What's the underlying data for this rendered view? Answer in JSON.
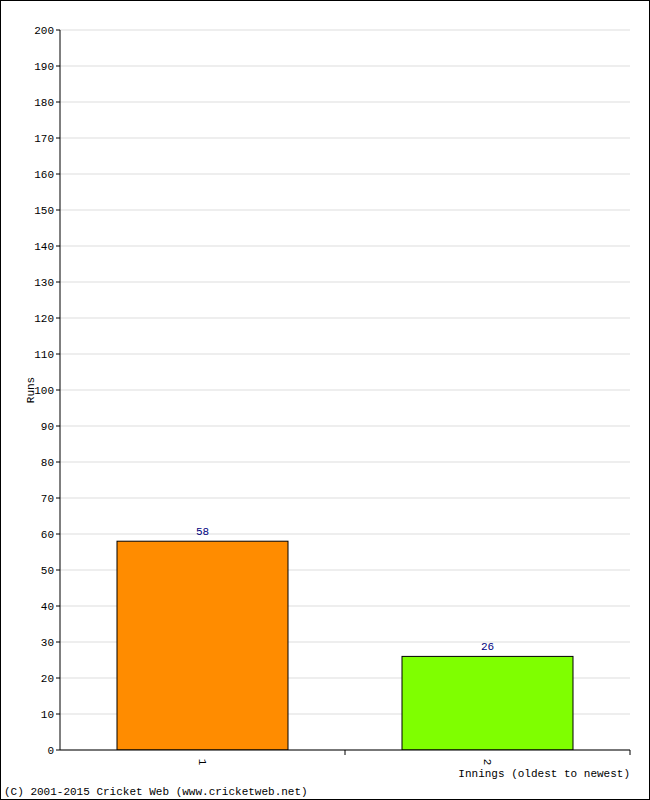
{
  "chart_data": {
    "type": "bar",
    "categories": [
      "1",
      "2"
    ],
    "values": [
      58,
      26
    ],
    "colors": [
      "#ff8c00",
      "#7fff00"
    ],
    "ylim": [
      0,
      200
    ],
    "yticks": [
      0,
      10,
      20,
      30,
      40,
      50,
      60,
      70,
      80,
      90,
      100,
      110,
      120,
      130,
      140,
      150,
      160,
      170,
      180,
      190,
      200
    ],
    "x_label": "Innings (oldest to newest)",
    "y_label": "Runs",
    "annotations": [
      "(C) 2001-2015 Cricket Web (www.cricketweb.net)"
    ],
    "grid": true,
    "data_labels": true
  }
}
